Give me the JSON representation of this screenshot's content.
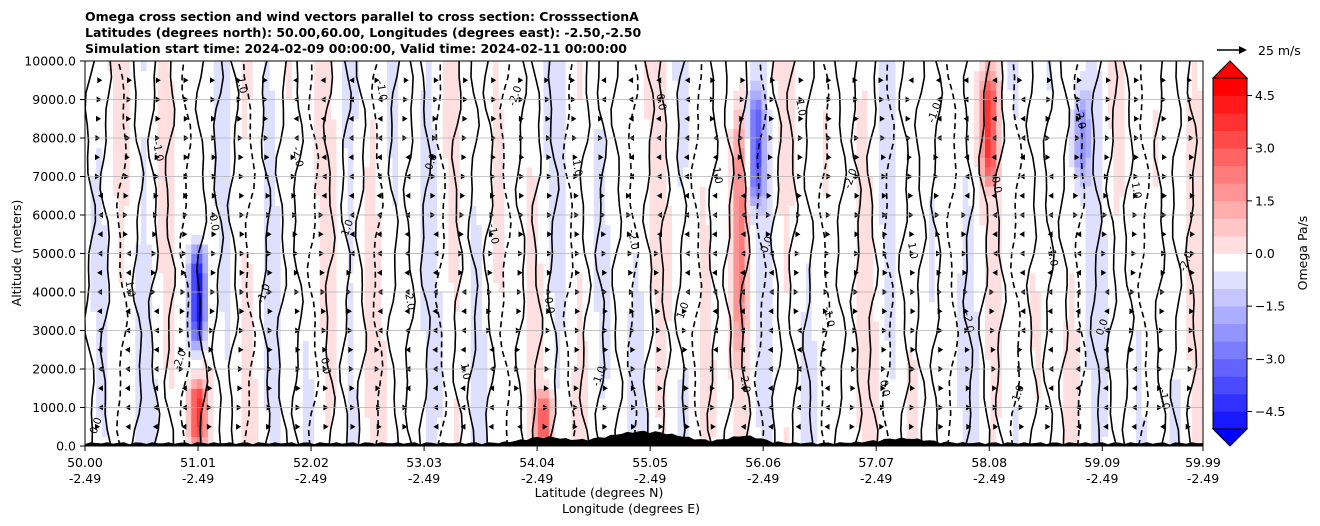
{
  "chart_data": {
    "type": "heatmap",
    "title_lines": [
      "Omega cross section and wind vectors parallel to cross section: CrosssectionA",
      "Latitudes (degrees north): 50.00,60.00, Longitudes (degrees east): -2.50,-2.50",
      "Simulation start time: 2024-02-09 00:00:00, Valid time: 2024-02-11 00:00:00"
    ],
    "xlabel_lat": "Latitude (degrees N)",
    "xlabel_lon": "Longitude (degrees E)",
    "ylabel": "Altitude (meters)",
    "x_lat_ticks": [
      "50.00",
      "51.01",
      "52.02",
      "53.03",
      "54.04",
      "55.05",
      "56.06",
      "57.07",
      "58.08",
      "59.09",
      "59.99"
    ],
    "x_lon_ticks": [
      "-2.49",
      "-2.49",
      "-2.49",
      "-2.49",
      "-2.49",
      "-2.49",
      "-2.49",
      "-2.49",
      "-2.49",
      "-2.49",
      "-2.49"
    ],
    "x_lat_values": [
      50.0,
      51.01,
      52.02,
      53.03,
      54.04,
      55.05,
      56.06,
      57.07,
      58.08,
      59.09,
      59.99
    ],
    "xlim": [
      50.0,
      59.99
    ],
    "y_ticks": [
      "0.0",
      "1000.0",
      "2000.0",
      "3000.0",
      "4000.0",
      "5000.0",
      "6000.0",
      "7000.0",
      "8000.0",
      "9000.0",
      "10000.0"
    ],
    "y_values": [
      0,
      1000,
      2000,
      3000,
      4000,
      5000,
      6000,
      7000,
      8000,
      9000,
      10000
    ],
    "ylim": [
      0,
      10000
    ],
    "grid": true,
    "colorbar": {
      "label": "Omega Pa/s",
      "ticks": [
        "4.5",
        "3.0",
        "1.5",
        "0.0",
        "−1.5",
        "−3.0",
        "−4.5"
      ],
      "tick_values": [
        4.5,
        3.0,
        1.5,
        0.0,
        -1.5,
        -3.0,
        -4.5
      ],
      "range": [
        -5.0,
        5.0
      ],
      "extend": "both"
    },
    "quiver_key": "25 m/s",
    "contour_labels": [
      "0.0",
      "1.0",
      "-1.0",
      "-2.0"
    ],
    "strong_features": [
      {
        "lat": 51.01,
        "alt_range": [
          2800,
          5000
        ],
        "omega": -5.0
      },
      {
        "lat": 51.01,
        "alt_range": [
          200,
          1500
        ],
        "omega": 4.0
      },
      {
        "lat": 54.1,
        "alt_range": [
          0,
          1200
        ],
        "omega": 3.0
      },
      {
        "lat": 55.85,
        "alt_range": [
          2500,
          8500
        ],
        "omega": 2.5
      },
      {
        "lat": 56.0,
        "alt_range": [
          6500,
          9000
        ],
        "omega": -3.0
      },
      {
        "lat": 58.08,
        "alt_range": [
          7000,
          9500
        ],
        "omega": 3.5
      },
      {
        "lat": 58.9,
        "alt_range": [
          7000,
          9000
        ],
        "omega": -2.0
      }
    ],
    "colors": {
      "positive_max": "#ff0000",
      "negative_max": "#0000ff",
      "neutral": "#ffffff",
      "terrain": "#000000"
    }
  }
}
